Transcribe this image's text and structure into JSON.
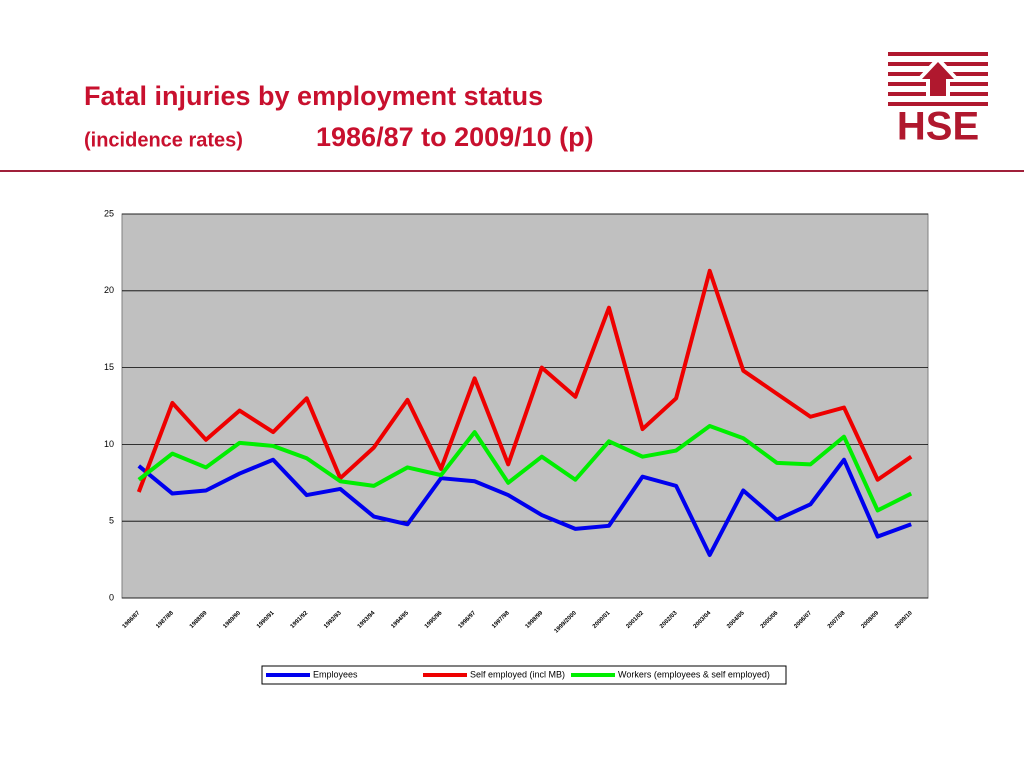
{
  "header": {
    "title": "Fatal injuries by employment status",
    "subtitle_small": "(incidence rates)",
    "subtitle_large": "1986/87 to 2009/10 (p)",
    "logo": "HSE"
  },
  "chart_data": {
    "type": "line",
    "categories": [
      "1986/87",
      "1987/88",
      "1988/89",
      "1989/90",
      "1990/91",
      "1991/92",
      "1992/93",
      "1993/94",
      "1994/95",
      "1995/96",
      "1996/97",
      "1997/98",
      "1998/99",
      "1999/2000",
      "2000/01",
      "2001/02",
      "2002/03",
      "2003/04",
      "2004/05",
      "2005/06",
      "2006/07",
      "2007/08",
      "2008/09",
      "2009/10"
    ],
    "series": [
      {
        "name": "Employees",
        "color": "#0000ee",
        "values": [
          8.6,
          6.8,
          7.0,
          8.1,
          9.0,
          6.7,
          7.1,
          5.3,
          4.8,
          7.8,
          7.6,
          6.7,
          5.4,
          4.5,
          4.7,
          7.9,
          7.3,
          2.8,
          7.0,
          5.1,
          6.1,
          9.0,
          4.0,
          4.8
        ]
      },
      {
        "name": "Self employed (incl MB)",
        "color": "#ee0000",
        "values": [
          6.9,
          12.7,
          10.3,
          12.2,
          10.8,
          13.0,
          7.8,
          9.8,
          12.9,
          8.4,
          14.3,
          8.7,
          15.0,
          13.1,
          18.9,
          11.0,
          13.0,
          21.3,
          14.8,
          13.3,
          11.8,
          12.4,
          7.7,
          9.2
        ]
      },
      {
        "name": "Workers (employees & self employed)",
        "color": "#00ee00",
        "values": [
          7.7,
          9.4,
          8.5,
          10.1,
          9.9,
          9.1,
          7.6,
          7.3,
          8.5,
          8.0,
          10.8,
          7.5,
          9.2,
          7.7,
          10.2,
          9.2,
          9.6,
          11.2,
          10.4,
          8.8,
          8.7,
          10.5,
          5.7,
          6.8
        ]
      }
    ],
    "ylim": [
      0,
      25
    ],
    "yticks": [
      0,
      5,
      10,
      15,
      20,
      25
    ],
    "grid": true
  }
}
